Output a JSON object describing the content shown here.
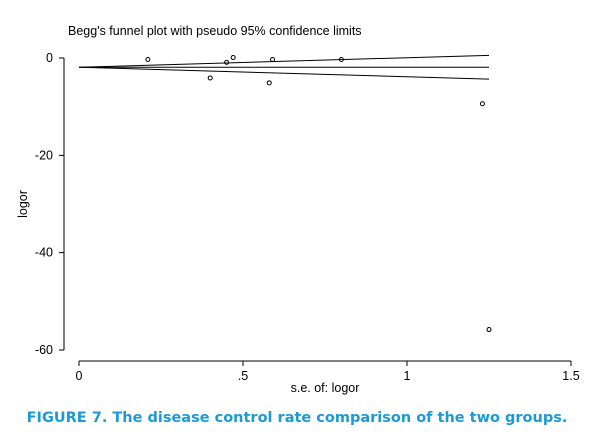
{
  "chart_data": {
    "type": "scatter",
    "title": "Begg's funnel plot with pseudo 95% confidence limits",
    "xlabel": "s.e. of: logor",
    "ylabel": "logor",
    "xlim": [
      0,
      1.5
    ],
    "ylim": [
      -60,
      0
    ],
    "x_ticks": [
      0,
      0.5,
      1,
      1.5
    ],
    "x_tick_labels": [
      "0",
      ".5",
      "1",
      "1.5"
    ],
    "y_ticks": [
      0,
      -20,
      -40,
      -60
    ],
    "y_tick_labels": [
      "0",
      "-20",
      "-40",
      "-60"
    ],
    "grid": false,
    "points": [
      {
        "x": 0.21,
        "y": -0.3
      },
      {
        "x": 0.4,
        "y": -4.1
      },
      {
        "x": 0.45,
        "y": -0.9
      },
      {
        "x": 0.47,
        "y": 0.1
      },
      {
        "x": 0.58,
        "y": -5.1
      },
      {
        "x": 0.59,
        "y": -0.3
      },
      {
        "x": 0.8,
        "y": -0.3
      },
      {
        "x": 1.23,
        "y": -9.4
      },
      {
        "x": 1.25,
        "y": -55.8
      }
    ],
    "pooled_estimate": -1.9,
    "ci_lines": [
      {
        "x": [
          0,
          1.25
        ],
        "y": [
          -1.9,
          0.55
        ]
      },
      {
        "x": [
          0,
          1.25
        ],
        "y": [
          -1.9,
          -1.9
        ]
      },
      {
        "x": [
          0,
          1.25
        ],
        "y": [
          -1.9,
          -4.35
        ]
      }
    ]
  },
  "caption": "FIGURE 7. The disease control rate comparison of the two groups.",
  "colors": {
    "plot_ink": "#000000",
    "caption": "#1b9ad7"
  }
}
